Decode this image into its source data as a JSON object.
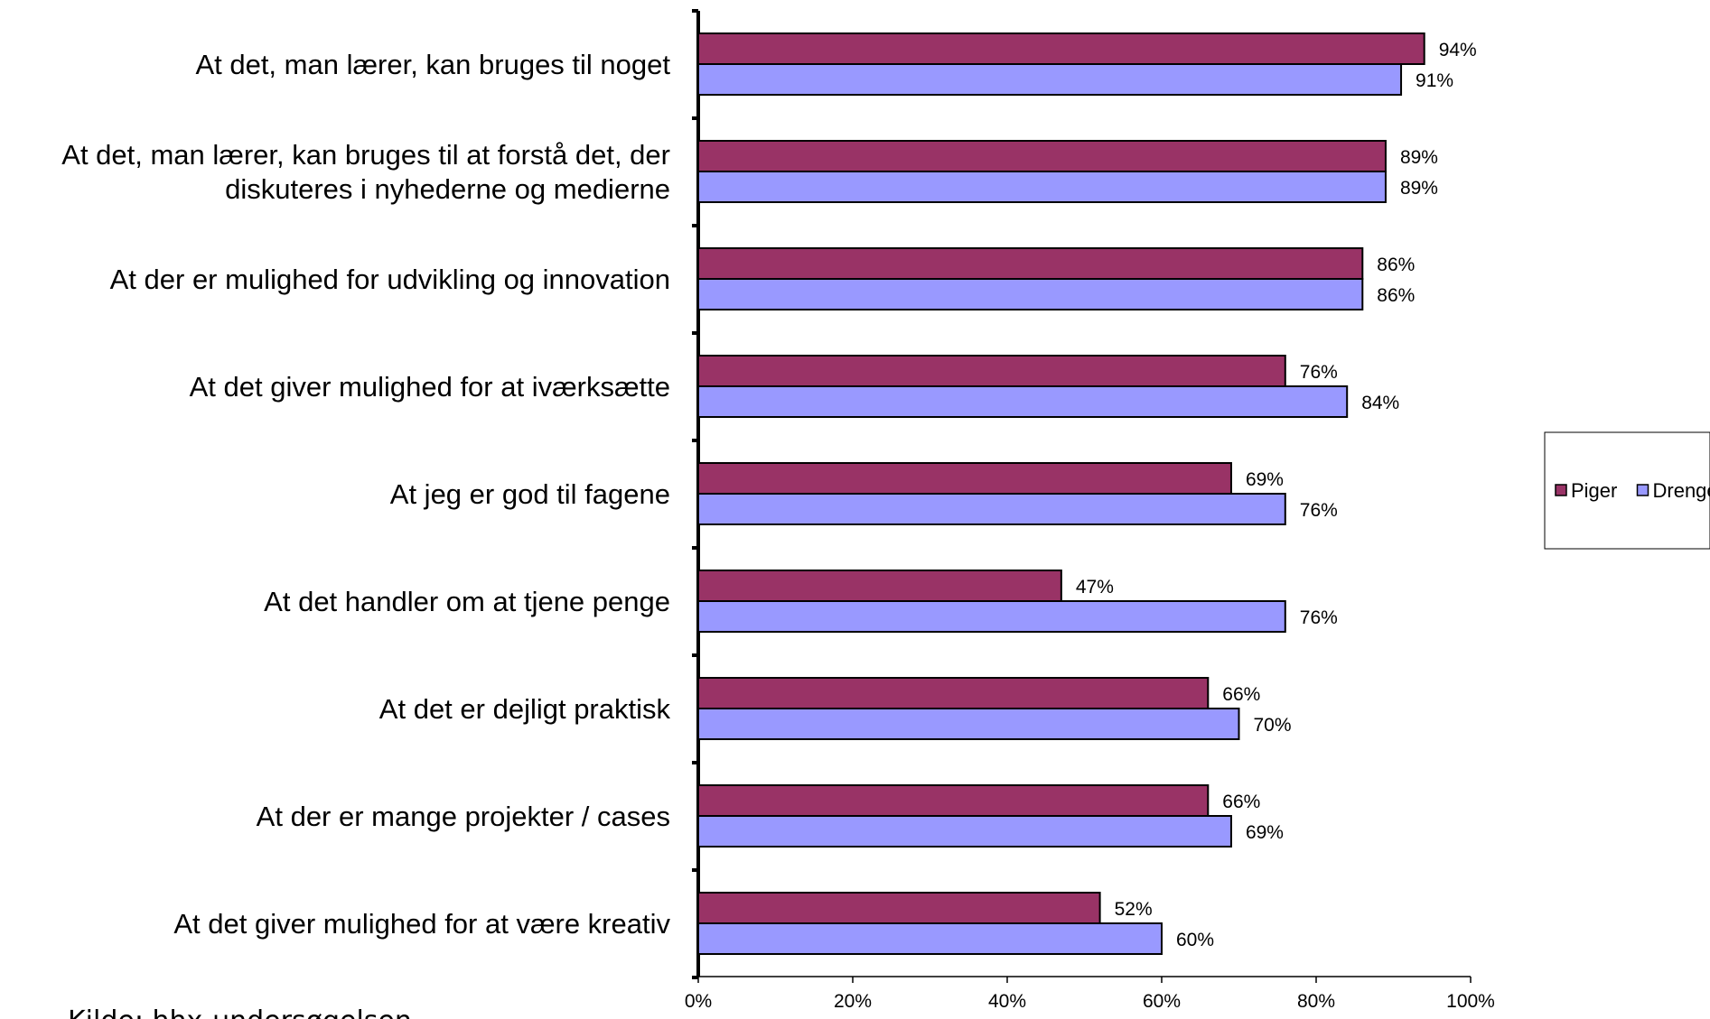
{
  "chart_data": {
    "type": "bar",
    "orientation": "horizontal",
    "categories": [
      [
        "At det, man lærer, kan bruges til noget"
      ],
      [
        "At det, man lærer, kan bruges til at forstå det, der",
        "diskuteres i nyhederne og medierne"
      ],
      [
        "At der er mulighed for udvikling og innovation"
      ],
      [
        "At det giver mulighed for at iværksætte"
      ],
      [
        "At jeg er god til fagene"
      ],
      [
        "At det handler om at tjene penge"
      ],
      [
        "At det er dejligt praktisk"
      ],
      [
        "At der er mange projekter / cases"
      ],
      [
        "At det giver mulighed for at være kreativ"
      ]
    ],
    "series": [
      {
        "name": "Piger",
        "color": "#993366",
        "values": [
          94,
          89,
          86,
          76,
          69,
          47,
          66,
          66,
          52
        ]
      },
      {
        "name": "Drenge",
        "color": "#9999ff",
        "values": [
          91,
          89,
          86,
          84,
          76,
          76,
          70,
          69,
          60
        ]
      }
    ],
    "value_suffix": "%",
    "xlim": [
      0,
      100
    ],
    "xticks": [
      "0%",
      "20%",
      "40%",
      "60%",
      "80%",
      "100%"
    ],
    "grid": false,
    "legend_position": "right"
  },
  "source_note": "Kilde: hhx-undersøgelsen"
}
